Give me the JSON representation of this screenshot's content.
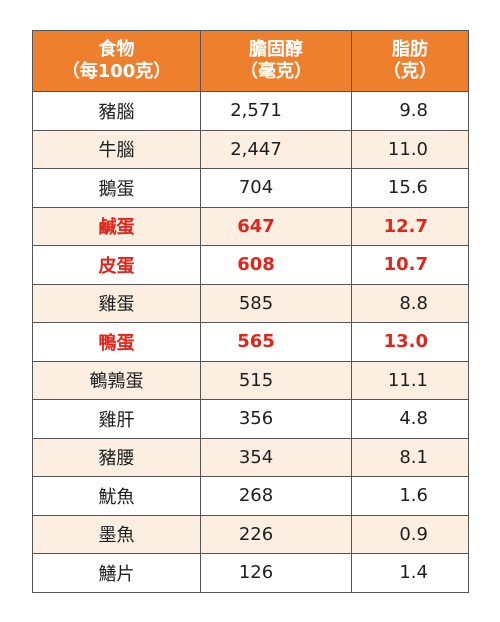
{
  "header": {
    "food_line1": "食物",
    "food_line2": "（每100克）",
    "chol_line1": "膽固醇",
    "chol_line2": "（毫克）",
    "fat_line1": "脂肪",
    "fat_line2": "（克）"
  },
  "colors": {
    "header_bg": "#ee7f2d",
    "stripe_bg": "#fdeee2",
    "highlight_text": "#e0261c"
  },
  "rows": [
    {
      "food": "豬腦",
      "cholesterol": "2,571",
      "fat": "9.8",
      "highlight": false
    },
    {
      "food": "牛腦",
      "cholesterol": "2,447",
      "fat": "11.0",
      "highlight": false
    },
    {
      "food": "鵝蛋",
      "cholesterol": "704",
      "fat": "15.6",
      "highlight": false
    },
    {
      "food": "鹹蛋",
      "cholesterol": "647",
      "fat": "12.7",
      "highlight": true
    },
    {
      "food": "皮蛋",
      "cholesterol": "608",
      "fat": "10.7",
      "highlight": true
    },
    {
      "food": "雞蛋",
      "cholesterol": "585",
      "fat": "8.8",
      "highlight": false
    },
    {
      "food": "鴨蛋",
      "cholesterol": "565",
      "fat": "13.0",
      "highlight": true
    },
    {
      "food": "鵪鶉蛋",
      "cholesterol": "515",
      "fat": "11.1",
      "highlight": false
    },
    {
      "food": "雞肝",
      "cholesterol": "356",
      "fat": "4.8",
      "highlight": false
    },
    {
      "food": "豬腰",
      "cholesterol": "354",
      "fat": "8.1",
      "highlight": false
    },
    {
      "food": "魷魚",
      "cholesterol": "268",
      "fat": "1.6",
      "highlight": false
    },
    {
      "food": "墨魚",
      "cholesterol": "226",
      "fat": "0.9",
      "highlight": false
    },
    {
      "food": "鱔片",
      "cholesterol": "126",
      "fat": "1.4",
      "highlight": false
    }
  ]
}
